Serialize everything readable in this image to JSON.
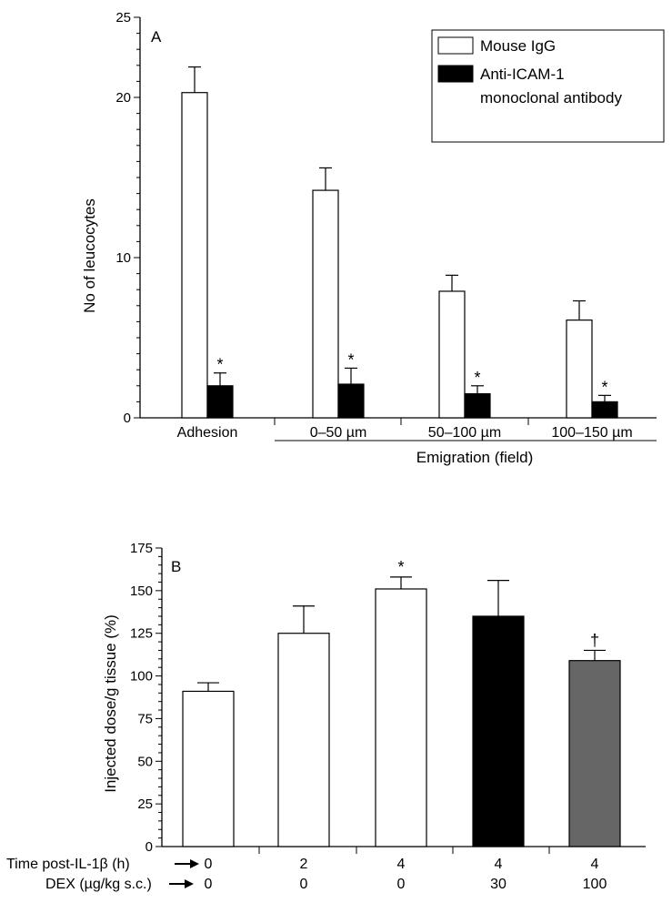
{
  "chart_data": [
    {
      "type": "bar",
      "panel": "A",
      "ylabel": "No of leucocytes",
      "ylim": [
        0,
        25
      ],
      "yticks": [
        0,
        10,
        20,
        25
      ],
      "categories": [
        "Adhesion",
        "0–50 µm",
        "50–100 µm",
        "100–150 µm"
      ],
      "group_label": "Emigration (field)",
      "legend": {
        "placement": "top-right"
      },
      "series": [
        {
          "name": "Mouse IgG",
          "fill": "#ffffff",
          "values": [
            20.3,
            14.2,
            7.9,
            6.1
          ],
          "errors": [
            1.6,
            1.4,
            1.0,
            1.2
          ],
          "markers": [
            "",
            "",
            "",
            ""
          ]
        },
        {
          "name": "Anti-ICAM-1 monoclonal antibody",
          "fill": "#000000",
          "values": [
            2.0,
            2.1,
            1.5,
            1.0
          ],
          "errors": [
            0.8,
            1.0,
            0.5,
            0.4
          ],
          "markers": [
            "*",
            "*",
            "*",
            "*"
          ]
        }
      ]
    },
    {
      "type": "bar",
      "panel": "B",
      "ylabel": "Injected dose/g tissue (%)",
      "ylim": [
        0,
        175
      ],
      "yticks": [
        0,
        25,
        50,
        75,
        100,
        125,
        150,
        175
      ],
      "row_labels": [
        "Time post-IL-1β (h)",
        "DEX (µg/kg s.c.)"
      ],
      "time_values": [
        "0",
        "2",
        "4",
        "4",
        "4"
      ],
      "dex_values": [
        "0",
        "0",
        "0",
        "30",
        "100"
      ],
      "values": [
        91,
        125,
        151,
        135,
        109
      ],
      "errors": [
        5,
        16,
        7,
        21,
        6
      ],
      "fills": [
        "#ffffff",
        "#ffffff",
        "#ffffff",
        "#000000",
        "#666666"
      ],
      "markers": [
        "",
        "",
        "*",
        "",
        "†"
      ]
    }
  ]
}
